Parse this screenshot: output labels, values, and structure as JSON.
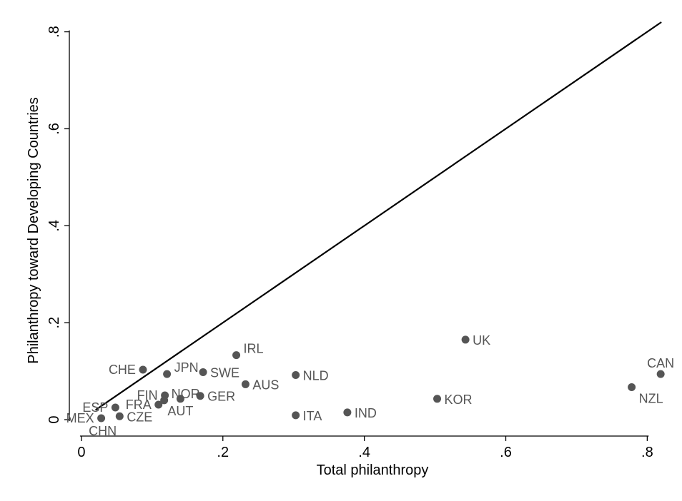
{
  "chart_data": {
    "type": "scatter",
    "title": "",
    "xlabel": "Total philanthropy",
    "ylabel": "Philanthropy toward Developing Countries",
    "xlim": [
      -0.01,
      0.835
    ],
    "ylim": [
      -0.025,
      0.845
    ],
    "x_ticks": [
      0,
      0.2,
      0.4,
      0.6,
      0.8
    ],
    "x_tick_labels": [
      "0",
      ".2",
      ".4",
      ".6",
      ".8"
    ],
    "y_ticks": [
      0,
      0.2,
      0.4,
      0.6,
      0.8
    ],
    "y_tick_labels": [
      "0",
      ".2",
      ".4",
      ".6",
      ".8"
    ],
    "grid": false,
    "legend": "none",
    "colors": {
      "marker": "#555555",
      "line": "#000000",
      "label": "#555555",
      "axis": "#000000"
    },
    "reference_line": {
      "type": "45-degree",
      "x": [
        0.02,
        0.82
      ],
      "y": [
        0.02,
        0.82
      ]
    },
    "points": [
      {
        "label": "MEX",
        "x": 0.028,
        "y": 0.003,
        "label_pos": "left"
      },
      {
        "label": "CHN",
        "x": 0.028,
        "y": 0.003,
        "label_pos": "below"
      },
      {
        "label": "ESP",
        "x": 0.048,
        "y": 0.025,
        "label_pos": "left"
      },
      {
        "label": "CZE",
        "x": 0.054,
        "y": 0.007,
        "label_pos": "right"
      },
      {
        "label": "CHE",
        "x": 0.087,
        "y": 0.103,
        "label_pos": "left"
      },
      {
        "label": "FRA",
        "x": 0.109,
        "y": 0.031,
        "label_pos": "left"
      },
      {
        "label": "FIN",
        "x": 0.118,
        "y": 0.05,
        "label_pos": "left"
      },
      {
        "label": "NOR",
        "x": 0.117,
        "y": 0.04,
        "label_pos": "upper-right"
      },
      {
        "label": "JPN",
        "x": 0.121,
        "y": 0.094,
        "label_pos": "upper-right"
      },
      {
        "label": "AUT",
        "x": 0.14,
        "y": 0.043,
        "label_pos": "below"
      },
      {
        "label": "GER",
        "x": 0.168,
        "y": 0.049,
        "label_pos": "right"
      },
      {
        "label": "SWE",
        "x": 0.172,
        "y": 0.098,
        "label_pos": "right"
      },
      {
        "label": "IRL",
        "x": 0.219,
        "y": 0.133,
        "label_pos": "upper-right"
      },
      {
        "label": "AUS",
        "x": 0.232,
        "y": 0.073,
        "label_pos": "right"
      },
      {
        "label": "NLD",
        "x": 0.303,
        "y": 0.092,
        "label_pos": "right"
      },
      {
        "label": "ITA",
        "x": 0.303,
        "y": 0.009,
        "label_pos": "right"
      },
      {
        "label": "IND",
        "x": 0.376,
        "y": 0.015,
        "label_pos": "right"
      },
      {
        "label": "KOR",
        "x": 0.503,
        "y": 0.043,
        "label_pos": "right"
      },
      {
        "label": "UK",
        "x": 0.543,
        "y": 0.165,
        "label_pos": "right"
      },
      {
        "label": "NZL",
        "x": 0.778,
        "y": 0.067,
        "label_pos": "below-right"
      },
      {
        "label": "CAN",
        "x": 0.819,
        "y": 0.094,
        "label_pos": "above"
      }
    ]
  }
}
